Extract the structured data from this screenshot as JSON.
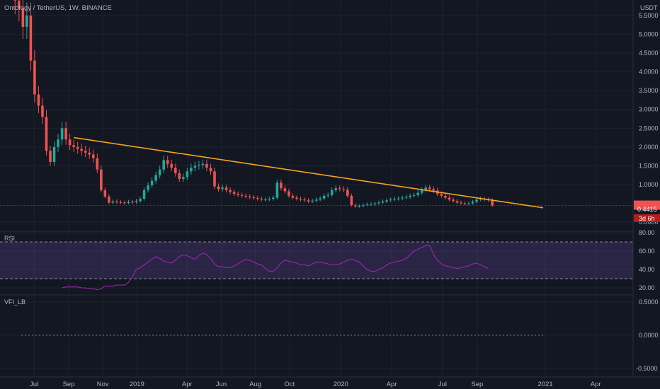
{
  "header": {
    "symbol_title": "Ontology / TetherUS, 1W, BINANCE",
    "currency": "USDT"
  },
  "panes": {
    "rsi_label": "RSI",
    "vfi_label": "VFI_LB"
  },
  "last_price": {
    "value": "0.4415",
    "countdown": "3d 6h"
  },
  "colors": {
    "background": "#131722",
    "up": "#26a69a",
    "down": "#ef5350",
    "trendline": "#f7a21b",
    "rsi_line": "#9c27b0",
    "rsi_band": "#7e57c2",
    "grid": "#1e222d",
    "text": "#b2b5be"
  },
  "chart_data": [
    {
      "type": "candlestick",
      "pane": "price",
      "y_ticks": [
        "5.5000",
        "5.0000",
        "4.5000",
        "4.0000",
        "3.5000",
        "3.0000",
        "2.5000",
        "2.0000",
        "1.5000",
        "1.0000",
        "0.0000"
      ],
      "y_tick_values": [
        5.5,
        5.0,
        4.5,
        4.0,
        3.5,
        3.0,
        2.5,
        2.0,
        1.5,
        1.0,
        0.0
      ],
      "x_ticks": [
        "Jul",
        "Sep",
        "Nov",
        "2019",
        "Apr",
        "Jun",
        "Aug",
        "Oct",
        "2020",
        "Apr",
        "Jul",
        "Sep",
        "2021",
        "Apr"
      ],
      "x_tick_dates": [
        "2018-07-01",
        "2018-09-01",
        "2018-11-01",
        "2019-01-01",
        "2019-04-01",
        "2019-06-01",
        "2019-08-01",
        "2019-10-01",
        "2020-01-01",
        "2020-04-01",
        "2020-07-01",
        "2020-09-01",
        "2021-01-01",
        "2021-04-01"
      ],
      "x_range": [
        "2018-05-01",
        "2021-06-07"
      ],
      "y_range": [
        -0.2,
        6.0
      ],
      "closes": [
        5.9,
        5.7,
        5.2,
        5.5,
        4.3,
        3.4,
        3.1,
        2.8,
        1.9,
        1.6,
        2.0,
        2.2,
        2.5,
        2.2,
        2.05,
        2.0,
        1.95,
        1.9,
        1.85,
        1.8,
        1.7,
        1.4,
        0.85,
        0.68,
        0.52,
        0.55,
        0.53,
        0.52,
        0.51,
        0.54,
        0.53,
        0.56,
        0.62,
        0.85,
        0.98,
        1.1,
        1.25,
        1.4,
        1.65,
        1.55,
        1.45,
        1.3,
        1.15,
        1.2,
        1.35,
        1.45,
        1.5,
        1.52,
        1.55,
        1.45,
        1.35,
        0.95,
        0.88,
        0.92,
        0.85,
        0.8,
        0.75,
        0.72,
        0.7,
        0.68,
        0.66,
        0.64,
        0.62,
        0.6,
        0.6,
        0.62,
        0.65,
        1.05,
        0.9,
        0.82,
        0.7,
        0.65,
        0.62,
        0.6,
        0.58,
        0.55,
        0.57,
        0.6,
        0.63,
        0.7,
        0.72,
        0.85,
        0.9,
        0.88,
        0.86,
        0.7,
        0.45,
        0.42,
        0.43,
        0.45,
        0.47,
        0.48,
        0.5,
        0.52,
        0.55,
        0.58,
        0.6,
        0.62,
        0.63,
        0.65,
        0.67,
        0.7,
        0.72,
        0.78,
        0.85,
        0.92,
        0.88,
        0.84,
        0.75,
        0.7,
        0.65,
        0.6,
        0.56,
        0.52,
        0.5,
        0.48,
        0.5,
        0.54,
        0.6,
        0.62,
        0.6,
        0.58,
        0.4415
      ],
      "last_price": 0.4415,
      "trendline": {
        "start": [
          "2018-09-10",
          2.25
        ],
        "end": [
          "2020-12-28",
          0.38
        ]
      }
    },
    {
      "type": "line",
      "pane": "rsi",
      "name": "RSI",
      "y_ticks": [
        "80.00",
        "60.00",
        "40.00",
        "20.00"
      ],
      "y_tick_values": [
        80,
        60,
        40,
        20
      ],
      "y_range": [
        15,
        82
      ],
      "bands": [
        30,
        70
      ],
      "start_date": "2018-08-20",
      "values": [
        20,
        21,
        21,
        21,
        21,
        20,
        20,
        19,
        19,
        18,
        19,
        22,
        22,
        22,
        23,
        23,
        23,
        26,
        32,
        40,
        42,
        45,
        48,
        51,
        54,
        52,
        49,
        48,
        47,
        50,
        54,
        56,
        55,
        53,
        51,
        55,
        58,
        56,
        52,
        46,
        43,
        43,
        42,
        42,
        44,
        46,
        49,
        51,
        50,
        48,
        46,
        45,
        41,
        38,
        38,
        42,
        47,
        50,
        49,
        48,
        47,
        45,
        45,
        44,
        46,
        48,
        48,
        47,
        46,
        45,
        45,
        46,
        48,
        50,
        51,
        50,
        48,
        44,
        40,
        38,
        38,
        40,
        42,
        45,
        47,
        48,
        49,
        50,
        52,
        56,
        60,
        62,
        64,
        66,
        66,
        56,
        50,
        46,
        44,
        43,
        42,
        41,
        42,
        43,
        44,
        46,
        47,
        45,
        43,
        41
      ]
    },
    {
      "type": "line",
      "pane": "vfi",
      "name": "VFI_LB",
      "y_ticks": [
        "0.5000",
        "0.0000",
        "-0.5000"
      ],
      "y_tick_values": [
        0.5,
        0.0,
        -0.5
      ],
      "y_range": [
        -0.55,
        0.62
      ],
      "zero_line_range": [
        "2018-06-08",
        "2020-12-28"
      ]
    }
  ]
}
